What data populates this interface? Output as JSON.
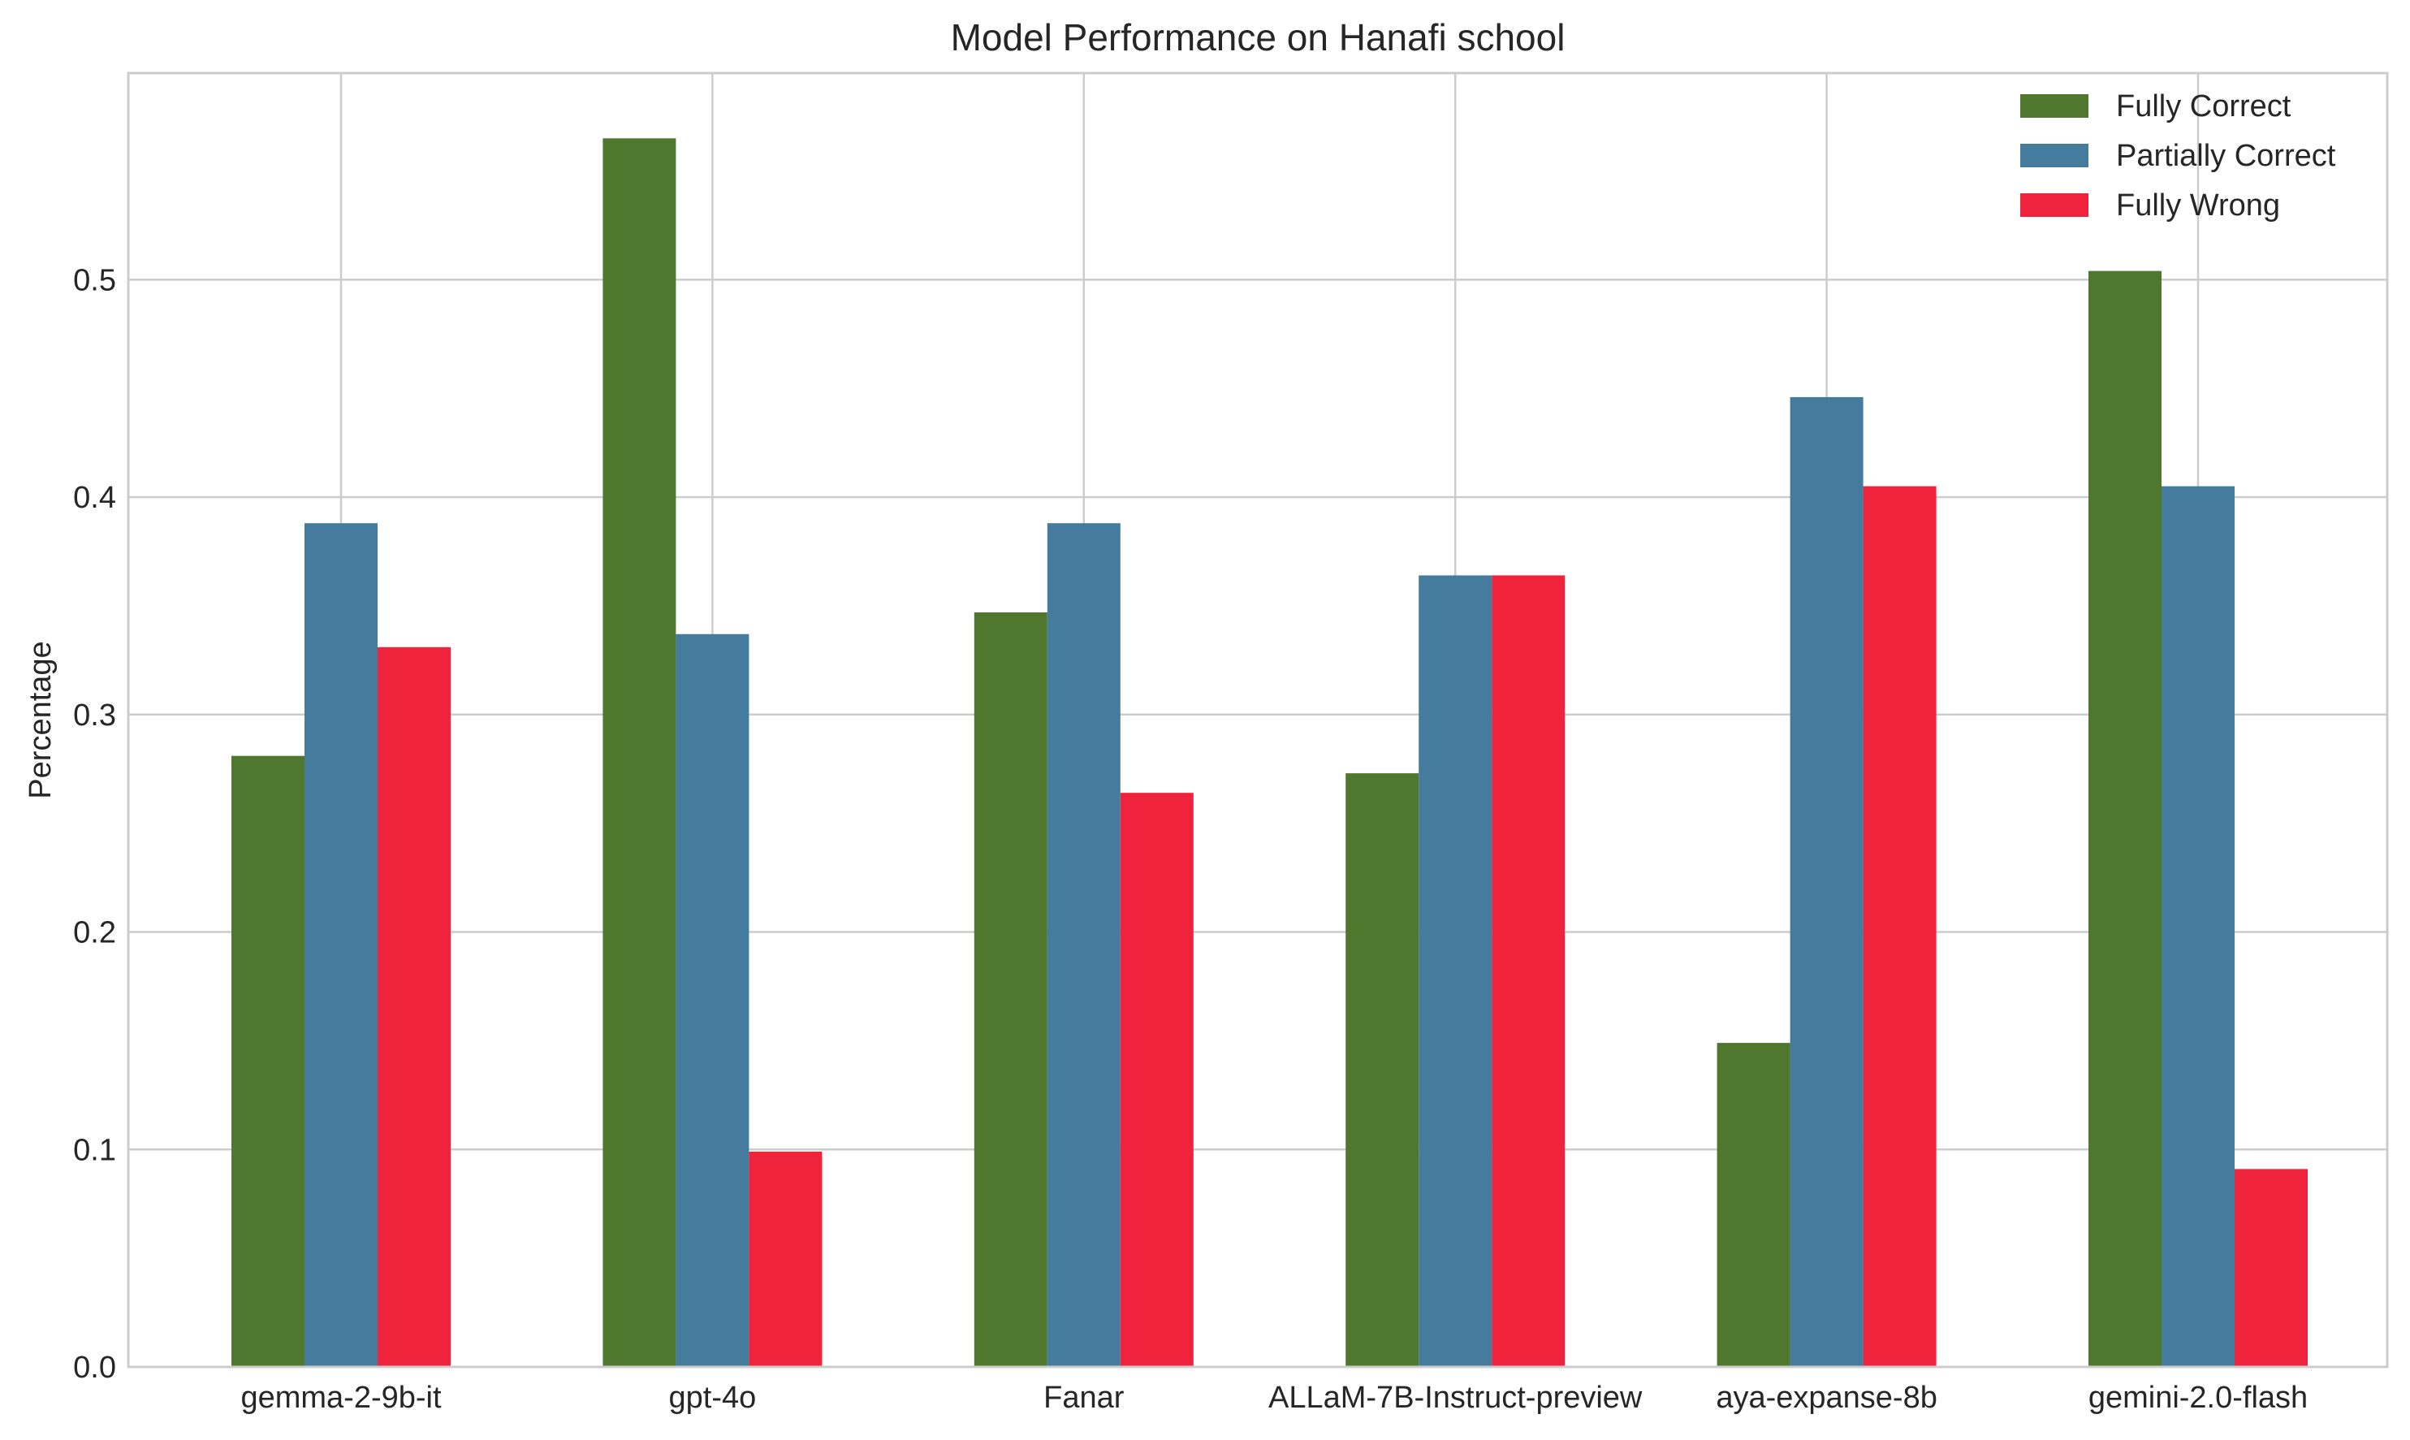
{
  "chart_data": {
    "type": "bar",
    "title": "Model Performance on Hanafi school",
    "xlabel": "",
    "ylabel": "Percentage",
    "categories": [
      "gemma-2-9b-it",
      "gpt-4o",
      "Fanar",
      "ALLaM-7B-Instruct-preview",
      "aya-expanse-8b",
      "gemini-2.0-flash"
    ],
    "series": [
      {
        "name": "Fully Correct",
        "color": "#4f772d",
        "values": [
          0.281,
          0.565,
          0.347,
          0.273,
          0.149,
          0.504
        ]
      },
      {
        "name": "Partially Correct",
        "color": "#457b9d",
        "values": [
          0.388,
          0.337,
          0.388,
          0.364,
          0.446,
          0.405
        ]
      },
      {
        "name": "Fully Wrong",
        "color": "#ef233c",
        "values": [
          0.331,
          0.099,
          0.264,
          0.364,
          0.405,
          0.091
        ]
      }
    ],
    "ylim": [
      0,
      0.595
    ],
    "yticks": [
      "0.0",
      "0.1",
      "0.2",
      "0.3",
      "0.4",
      "0.5"
    ],
    "grid": true,
    "legend_position": "top-right"
  }
}
